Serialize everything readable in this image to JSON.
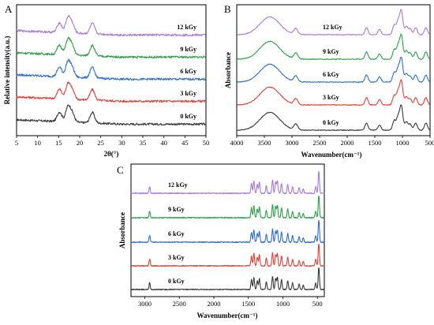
{
  "chart_data": [
    {
      "panel": "A",
      "type": "line",
      "xlabel": "2θ(°)",
      "ylabel": "Relative intensity(a.u.)",
      "xlim": [
        5,
        50
      ],
      "xticks": [
        "5",
        "10",
        "15",
        "20",
        "25",
        "30",
        "35",
        "40",
        "45",
        "50"
      ],
      "series": [
        {
          "name": "0 kGy",
          "color": "#3a3a3a",
          "peaks": [
            [
              15.2,
              0.55
            ],
            [
              17.2,
              0.85
            ],
            [
              18.2,
              0.5
            ],
            [
              23.0,
              0.6
            ]
          ]
        },
        {
          "name": "3 kGy",
          "color": "#e2403a",
          "peaks": [
            [
              15.2,
              0.55
            ],
            [
              17.2,
              0.85
            ],
            [
              18.2,
              0.5
            ],
            [
              23.0,
              0.6
            ]
          ]
        },
        {
          "name": "6 kGy",
          "color": "#2f6fd1",
          "peaks": [
            [
              15.2,
              0.55
            ],
            [
              17.2,
              0.85
            ],
            [
              18.2,
              0.5
            ],
            [
              23.0,
              0.6
            ]
          ]
        },
        {
          "name": "9 kGy",
          "color": "#2ea04a",
          "peaks": [
            [
              15.2,
              0.55
            ],
            [
              17.2,
              0.85
            ],
            [
              18.2,
              0.5
            ],
            [
              23.0,
              0.6
            ]
          ]
        },
        {
          "name": "12 kGy",
          "color": "#a97ad8",
          "peaks": [
            [
              15.2,
              0.55
            ],
            [
              17.2,
              0.85
            ],
            [
              18.2,
              0.5
            ],
            [
              23.0,
              0.6
            ]
          ]
        }
      ]
    },
    {
      "panel": "B",
      "type": "line",
      "xlabel": "Wavenumber(cm⁻¹)",
      "ylabel": "Absorbance",
      "xlim": [
        4000,
        500
      ],
      "xticks": [
        "4000",
        "3500",
        "3000",
        "2500",
        "2000",
        "1500",
        "1000",
        "500"
      ],
      "series": [
        {
          "name": "0 kGy",
          "color": "#3a3a3a",
          "peaks": [
            [
              3400,
              0.75
            ],
            [
              2930,
              0.25
            ],
            [
              1650,
              0.3
            ],
            [
              1415,
              0.22
            ],
            [
              1150,
              0.4
            ],
            [
              1080,
              0.55
            ],
            [
              1020,
              1.0
            ],
            [
              930,
              0.35
            ],
            [
              860,
              0.25
            ],
            [
              760,
              0.3
            ],
            [
              575,
              0.3
            ]
          ]
        },
        {
          "name": "3 kGy",
          "color": "#e2403a",
          "peaks": [
            [
              3400,
              0.75
            ],
            [
              2930,
              0.25
            ],
            [
              1650,
              0.3
            ],
            [
              1415,
              0.22
            ],
            [
              1150,
              0.4
            ],
            [
              1080,
              0.55
            ],
            [
              1020,
              1.0
            ],
            [
              930,
              0.35
            ],
            [
              860,
              0.25
            ],
            [
              760,
              0.3
            ],
            [
              575,
              0.3
            ]
          ]
        },
        {
          "name": "6 kGy",
          "color": "#2f6fd1",
          "peaks": [
            [
              3400,
              0.75
            ],
            [
              2930,
              0.25
            ],
            [
              1650,
              0.3
            ],
            [
              1415,
              0.22
            ],
            [
              1150,
              0.4
            ],
            [
              1080,
              0.55
            ],
            [
              1020,
              1.0
            ],
            [
              930,
              0.35
            ],
            [
              860,
              0.25
            ],
            [
              760,
              0.3
            ],
            [
              575,
              0.3
            ]
          ]
        },
        {
          "name": "9 kGy",
          "color": "#2ea04a",
          "peaks": [
            [
              3400,
              0.75
            ],
            [
              2930,
              0.25
            ],
            [
              1650,
              0.3
            ],
            [
              1415,
              0.22
            ],
            [
              1150,
              0.4
            ],
            [
              1080,
              0.55
            ],
            [
              1020,
              1.0
            ],
            [
              930,
              0.35
            ],
            [
              860,
              0.25
            ],
            [
              760,
              0.3
            ],
            [
              575,
              0.3
            ]
          ]
        },
        {
          "name": "12 kGy",
          "color": "#a97ad8",
          "peaks": [
            [
              3400,
              0.75
            ],
            [
              2930,
              0.25
            ],
            [
              1650,
              0.3
            ],
            [
              1415,
              0.22
            ],
            [
              1150,
              0.4
            ],
            [
              1080,
              0.55
            ],
            [
              1020,
              1.0
            ],
            [
              930,
              0.35
            ],
            [
              860,
              0.25
            ],
            [
              760,
              0.3
            ],
            [
              575,
              0.3
            ]
          ]
        }
      ]
    },
    {
      "panel": "C",
      "type": "line",
      "xlabel": "Wavenumber(cm⁻¹)",
      "ylabel": "Absorbance",
      "xlim": [
        3200,
        400
      ],
      "xticks": [
        "3000",
        "2500",
        "2000",
        "1500",
        "1000",
        "500"
      ],
      "series": [
        {
          "name": "0 kGy",
          "color": "#3a3a3a",
          "peaks": [
            [
              2930,
              0.3
            ],
            [
              1455,
              0.45
            ],
            [
              1420,
              0.55
            ],
            [
              1370,
              0.4
            ],
            [
              1340,
              0.5
            ],
            [
              1240,
              0.35
            ],
            [
              1150,
              0.6
            ],
            [
              1105,
              0.5
            ],
            [
              1080,
              0.55
            ],
            [
              1020,
              0.45
            ],
            [
              930,
              0.4
            ],
            [
              860,
              0.3
            ],
            [
              765,
              0.25
            ],
            [
              705,
              0.2
            ],
            [
              525,
              0.3
            ],
            [
              480,
              1.0
            ]
          ]
        },
        {
          "name": "3 kGy",
          "color": "#e2403a",
          "peaks": [
            [
              2930,
              0.3
            ],
            [
              1455,
              0.45
            ],
            [
              1420,
              0.55
            ],
            [
              1370,
              0.4
            ],
            [
              1340,
              0.5
            ],
            [
              1240,
              0.35
            ],
            [
              1150,
              0.6
            ],
            [
              1105,
              0.5
            ],
            [
              1080,
              0.55
            ],
            [
              1020,
              0.45
            ],
            [
              930,
              0.4
            ],
            [
              860,
              0.3
            ],
            [
              765,
              0.25
            ],
            [
              705,
              0.2
            ],
            [
              525,
              0.3
            ],
            [
              480,
              1.0
            ]
          ]
        },
        {
          "name": "6 kGy",
          "color": "#2f6fd1",
          "peaks": [
            [
              2930,
              0.3
            ],
            [
              1455,
              0.45
            ],
            [
              1420,
              0.55
            ],
            [
              1370,
              0.4
            ],
            [
              1340,
              0.5
            ],
            [
              1240,
              0.35
            ],
            [
              1150,
              0.6
            ],
            [
              1105,
              0.5
            ],
            [
              1080,
              0.55
            ],
            [
              1020,
              0.45
            ],
            [
              930,
              0.4
            ],
            [
              860,
              0.3
            ],
            [
              765,
              0.25
            ],
            [
              705,
              0.2
            ],
            [
              525,
              0.3
            ],
            [
              480,
              1.0
            ]
          ]
        },
        {
          "name": "9 kGy",
          "color": "#2ea04a",
          "peaks": [
            [
              2930,
              0.3
            ],
            [
              1455,
              0.45
            ],
            [
              1420,
              0.55
            ],
            [
              1370,
              0.4
            ],
            [
              1340,
              0.5
            ],
            [
              1240,
              0.35
            ],
            [
              1150,
              0.6
            ],
            [
              1105,
              0.5
            ],
            [
              1080,
              0.55
            ],
            [
              1020,
              0.45
            ],
            [
              930,
              0.4
            ],
            [
              860,
              0.3
            ],
            [
              765,
              0.25
            ],
            [
              705,
              0.2
            ],
            [
              525,
              0.3
            ],
            [
              480,
              1.0
            ]
          ]
        },
        {
          "name": "12 kGy",
          "color": "#a97ad8",
          "peaks": [
            [
              2930,
              0.3
            ],
            [
              1455,
              0.45
            ],
            [
              1420,
              0.55
            ],
            [
              1370,
              0.4
            ],
            [
              1340,
              0.5
            ],
            [
              1240,
              0.35
            ],
            [
              1150,
              0.6
            ],
            [
              1105,
              0.5
            ],
            [
              1080,
              0.55
            ],
            [
              1020,
              0.45
            ],
            [
              930,
              0.4
            ],
            [
              860,
              0.3
            ],
            [
              765,
              0.25
            ],
            [
              705,
              0.2
            ],
            [
              525,
              0.3
            ],
            [
              480,
              1.0
            ]
          ]
        }
      ]
    }
  ]
}
